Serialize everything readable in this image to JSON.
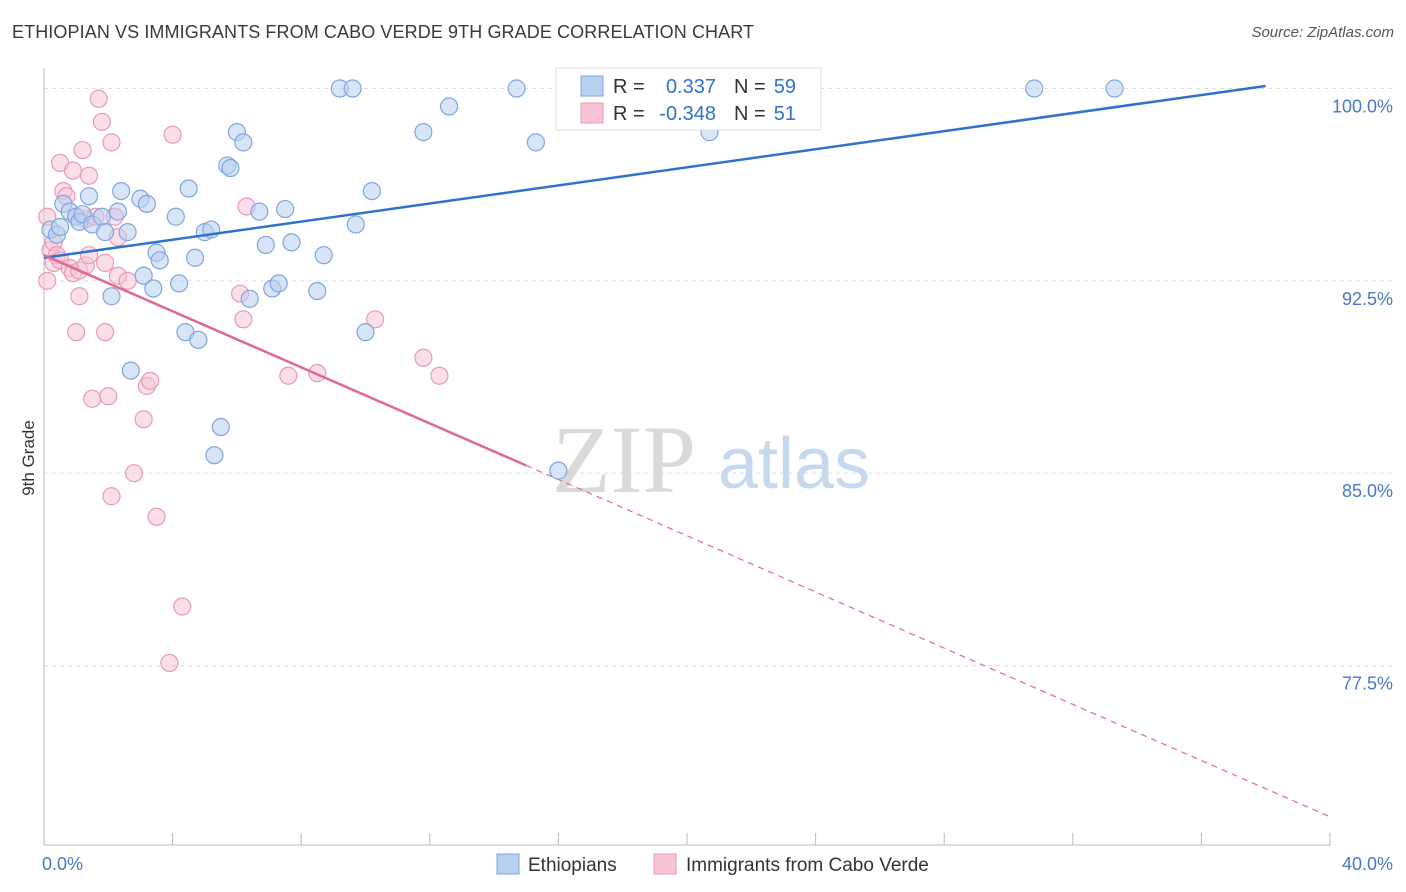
{
  "title": "ETHIOPIAN VS IMMIGRANTS FROM CABO VERDE 9TH GRADE CORRELATION CHART",
  "source": "Source: ZipAtlas.com",
  "watermark": {
    "part1": "ZIP",
    "part2": "atlas"
  },
  "chart_data": {
    "type": "scatter",
    "xlabel": "",
    "ylabel": "9th Grade",
    "xlim": [
      0,
      40
    ],
    "ylim": [
      70.5,
      100.8
    ],
    "x_tick_labels": {
      "min": "0.0%",
      "max": "40.0%"
    },
    "y_ticks": [
      {
        "value": 100.0,
        "label": "100.0%"
      },
      {
        "value": 92.5,
        "label": "92.5%"
      },
      {
        "value": 85.0,
        "label": "85.0%"
      },
      {
        "value": 77.5,
        "label": "77.5%"
      }
    ],
    "legend_box": {
      "rows": [
        {
          "r_label": "R =",
          "r_value": "0.337",
          "n_label": "N =",
          "n_value": "59"
        },
        {
          "r_label": "R =",
          "r_value": "-0.348",
          "n_label": "N =",
          "n_value": "51"
        }
      ]
    },
    "colors": {
      "blue_fill": "#b8d0f0",
      "blue_stroke": "#7fa6dc",
      "blue_line": "#2f72cc",
      "pink_fill": "#f8c4d6",
      "pink_stroke": "#e79ab6",
      "pink_line": "#e06894",
      "tick_text": "#4a78c8",
      "grid": "#dddddd"
    },
    "series": [
      {
        "name": "Ethiopians",
        "trend": {
          "x1": 0,
          "y1": 93.4,
          "x2": 38.0,
          "y2": 100.1,
          "dashed_to": null
        },
        "points": [
          [
            0.2,
            94.5
          ],
          [
            0.4,
            94.3
          ],
          [
            0.5,
            94.6
          ],
          [
            0.6,
            95.5
          ],
          [
            0.8,
            95.2
          ],
          [
            1.0,
            95.0
          ],
          [
            1.1,
            94.8
          ],
          [
            1.2,
            95.1
          ],
          [
            1.4,
            95.8
          ],
          [
            1.5,
            94.7
          ],
          [
            1.8,
            95.0
          ],
          [
            1.9,
            94.4
          ],
          [
            2.1,
            91.9
          ],
          [
            2.3,
            95.2
          ],
          [
            2.4,
            96.0
          ],
          [
            2.6,
            94.4
          ],
          [
            2.7,
            89.0
          ],
          [
            3.0,
            95.7
          ],
          [
            3.1,
            92.7
          ],
          [
            3.2,
            95.5
          ],
          [
            3.4,
            92.2
          ],
          [
            3.5,
            93.6
          ],
          [
            3.6,
            93.3
          ],
          [
            4.1,
            95.0
          ],
          [
            4.2,
            92.4
          ],
          [
            4.4,
            90.5
          ],
          [
            4.5,
            96.1
          ],
          [
            4.7,
            93.4
          ],
          [
            4.8,
            90.2
          ],
          [
            5.0,
            94.4
          ],
          [
            5.2,
            94.5
          ],
          [
            5.3,
            85.7
          ],
          [
            5.5,
            86.8
          ],
          [
            5.7,
            97.0
          ],
          [
            5.8,
            96.9
          ],
          [
            6.0,
            98.3
          ],
          [
            6.2,
            97.9
          ],
          [
            6.4,
            91.8
          ],
          [
            6.7,
            95.2
          ],
          [
            6.9,
            93.9
          ],
          [
            7.1,
            92.2
          ],
          [
            7.3,
            92.4
          ],
          [
            7.5,
            95.3
          ],
          [
            7.7,
            94.0
          ],
          [
            8.5,
            92.1
          ],
          [
            8.7,
            93.5
          ],
          [
            9.2,
            100.0
          ],
          [
            9.6,
            100.0
          ],
          [
            9.7,
            94.7
          ],
          [
            10.0,
            90.5
          ],
          [
            10.2,
            96.0
          ],
          [
            11.8,
            98.3
          ],
          [
            12.6,
            99.3
          ],
          [
            14.7,
            100.0
          ],
          [
            15.3,
            97.9
          ],
          [
            16.0,
            85.1
          ],
          [
            20.7,
            98.3
          ],
          [
            30.8,
            100.0
          ],
          [
            33.3,
            100.0
          ]
        ]
      },
      {
        "name": "Immigrants from Cabo Verde",
        "trend": {
          "x1": 0,
          "y1": 93.5,
          "x2": 15.0,
          "y2": 85.3,
          "dashed_to": [
            40.0,
            71.6
          ]
        },
        "points": [
          [
            0.1,
            95.0
          ],
          [
            0.1,
            92.5
          ],
          [
            0.2,
            93.7
          ],
          [
            0.3,
            94.0
          ],
          [
            0.3,
            93.2
          ],
          [
            0.4,
            93.5
          ],
          [
            0.5,
            93.3
          ],
          [
            0.5,
            97.1
          ],
          [
            0.6,
            96.0
          ],
          [
            0.7,
            95.8
          ],
          [
            0.8,
            93.0
          ],
          [
            0.9,
            92.8
          ],
          [
            0.9,
            96.8
          ],
          [
            1.0,
            90.5
          ],
          [
            1.0,
            95.0
          ],
          [
            1.1,
            92.9
          ],
          [
            1.1,
            91.9
          ],
          [
            1.2,
            97.6
          ],
          [
            1.3,
            93.1
          ],
          [
            1.3,
            94.9
          ],
          [
            1.4,
            96.6
          ],
          [
            1.4,
            93.5
          ],
          [
            1.5,
            87.9
          ],
          [
            1.6,
            95.0
          ],
          [
            1.7,
            99.6
          ],
          [
            1.8,
            98.7
          ],
          [
            1.9,
            93.2
          ],
          [
            1.9,
            90.5
          ],
          [
            2.0,
            88.0
          ],
          [
            2.1,
            84.1
          ],
          [
            2.1,
            97.9
          ],
          [
            2.2,
            95.0
          ],
          [
            2.3,
            94.2
          ],
          [
            2.3,
            92.7
          ],
          [
            2.6,
            92.5
          ],
          [
            2.8,
            85.0
          ],
          [
            3.1,
            87.1
          ],
          [
            3.2,
            88.4
          ],
          [
            3.3,
            88.6
          ],
          [
            3.5,
            83.3
          ],
          [
            3.9,
            77.6
          ],
          [
            4.0,
            98.2
          ],
          [
            4.3,
            79.8
          ],
          [
            6.1,
            92.0
          ],
          [
            6.2,
            91.0
          ],
          [
            6.3,
            95.4
          ],
          [
            7.6,
            88.8
          ],
          [
            8.5,
            88.9
          ],
          [
            10.3,
            91.0
          ],
          [
            11.8,
            89.5
          ],
          [
            12.3,
            88.8
          ]
        ]
      }
    ]
  }
}
